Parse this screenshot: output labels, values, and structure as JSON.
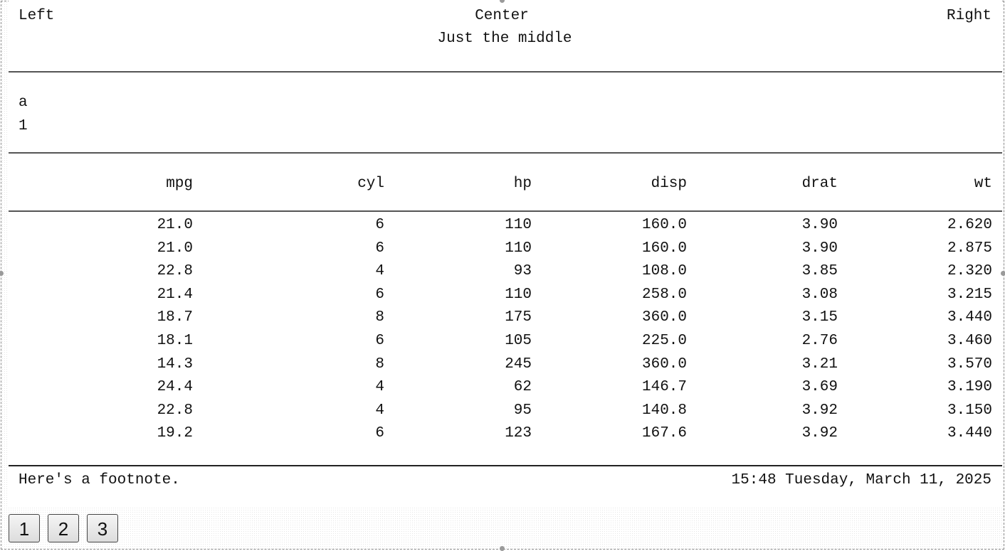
{
  "header": {
    "left": "Left",
    "center": "Center",
    "right": "Right",
    "subtitle": "Just the middle"
  },
  "label_block": {
    "line1": "a",
    "line2": "1"
  },
  "table": {
    "columns": [
      "mpg",
      "cyl",
      "hp",
      "disp",
      "drat",
      "wt"
    ],
    "rows": [
      [
        "21.0",
        "6",
        "110",
        "160.0",
        "3.90",
        "2.620"
      ],
      [
        "21.0",
        "6",
        "110",
        "160.0",
        "3.90",
        "2.875"
      ],
      [
        "22.8",
        "4",
        "93",
        "108.0",
        "3.85",
        "2.320"
      ],
      [
        "21.4",
        "6",
        "110",
        "258.0",
        "3.08",
        "3.215"
      ],
      [
        "18.7",
        "8",
        "175",
        "360.0",
        "3.15",
        "3.440"
      ],
      [
        "18.1",
        "6",
        "105",
        "225.0",
        "2.76",
        "3.460"
      ],
      [
        "14.3",
        "8",
        "245",
        "360.0",
        "3.21",
        "3.570"
      ],
      [
        "24.4",
        "4",
        "62",
        "146.7",
        "3.69",
        "3.190"
      ],
      [
        "22.8",
        "4",
        "95",
        "140.8",
        "3.92",
        "3.150"
      ],
      [
        "19.2",
        "6",
        "123",
        "167.6",
        "3.92",
        "3.440"
      ]
    ]
  },
  "footer": {
    "note": "Here's a footnote.",
    "datetime": "15:48 Tuesday, March 11, 2025"
  },
  "pager": {
    "pages": [
      "1",
      "2",
      "3"
    ]
  }
}
